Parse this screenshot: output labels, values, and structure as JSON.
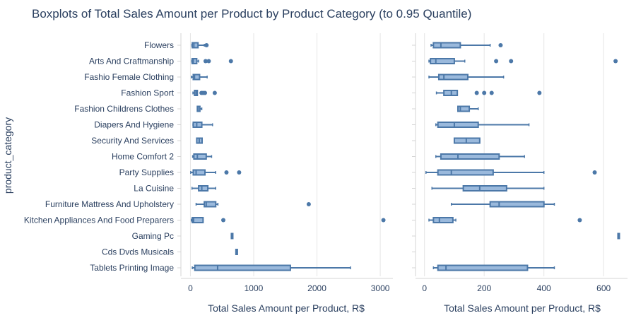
{
  "chart_data": {
    "type": "boxplot",
    "title": "Boxplots of Total Sales Amount per Product by Product Category (to 0.95 Quantile)",
    "ylabel": "product_category",
    "colors": {
      "box_fill": "#9ab9dc",
      "box_stroke": "#4c78a8",
      "text": "#2a3f5f",
      "grid": "#e5e5e5"
    },
    "categories": [
      "Flowers",
      "Arts And Craftmanship",
      "Fashio Female Clothing",
      "Fashion Sport",
      "Fashion Childrens Clothes",
      "Diapers And Hygiene",
      "Security And Services",
      "Home Comfort 2",
      "Party Supplies",
      "La Cuisine",
      "Furniture Mattress And Upholstery",
      "Kitchen Appliances And Food Preparers",
      "Gaming Pc",
      "Cds Dvds Musicals",
      "Tablets Printing Image"
    ],
    "panels": [
      {
        "xlabel": "Total Sales Amount per Product, R$",
        "xlim": [
          -150,
          3200
        ],
        "xticks": [
          0,
          1000,
          2000,
          3000
        ],
        "xtick_labels": [
          "0",
          "1000",
          "2000",
          "3000"
        ],
        "boxes": [
          {
            "wl": 22,
            "q1": 30,
            "median": 55,
            "q3": 120,
            "wh": 220,
            "outliers": [
              255
            ]
          },
          {
            "wl": 20,
            "q1": 28,
            "median": 45,
            "q3": 100,
            "wh": 130,
            "outliers": [
              240,
              290,
              640
            ]
          },
          {
            "wl": 15,
            "q1": 45,
            "median": 65,
            "q3": 145,
            "wh": 265,
            "outliers": []
          },
          {
            "wl": 40,
            "q1": 65,
            "median": 90,
            "q3": 110,
            "wh": 110,
            "outliers": [
              175,
              200,
              230,
              385
            ]
          },
          {
            "wl": 110,
            "q1": 110,
            "median": 120,
            "q3": 150,
            "wh": 180,
            "outliers": []
          },
          {
            "wl": 40,
            "q1": 45,
            "median": 100,
            "q3": 180,
            "wh": 350,
            "outliers": []
          },
          {
            "wl": 100,
            "q1": 100,
            "median": 140,
            "q3": 185,
            "wh": 185,
            "outliers": []
          },
          {
            "wl": 35,
            "q1": 55,
            "median": 110,
            "q3": 250,
            "wh": 335,
            "outliers": []
          },
          {
            "wl": 5,
            "q1": 45,
            "median": 90,
            "q3": 230,
            "wh": 400,
            "outliers": [
              570,
              770
            ]
          },
          {
            "wl": 25,
            "q1": 130,
            "median": 180,
            "q3": 275,
            "wh": 400,
            "outliers": []
          },
          {
            "wl": 90,
            "q1": 220,
            "median": 250,
            "q3": 400,
            "wh": 435,
            "outliers": [
              1870
            ]
          },
          {
            "wl": 15,
            "q1": 30,
            "median": 50,
            "q3": 200,
            "wh": 200,
            "outliers": [
              520,
              3050
            ]
          },
          {
            "wl": 648,
            "q1": 648,
            "median": 648,
            "q3": 648,
            "wh": 648,
            "outliers": []
          },
          {
            "wl": 720,
            "q1": 720,
            "median": 720,
            "q3": 720,
            "wh": 720,
            "outliers": []
          },
          {
            "wl": 30,
            "q1": 70,
            "median": 430,
            "q3": 1580,
            "wh": 2530,
            "outliers": []
          }
        ]
      },
      {
        "xlabel": "Total Sales Amount per Product, R$",
        "xlim": [
          -30,
          680
        ],
        "xticks": [
          0,
          200,
          400,
          600
        ],
        "xtick_labels": [
          "0",
          "200",
          "400",
          "600"
        ],
        "boxes": [
          {
            "wl": 22,
            "q1": 30,
            "median": 55,
            "q3": 120,
            "wh": 220,
            "outliers": [
              255
            ]
          },
          {
            "wl": 15,
            "q1": 20,
            "median": 38,
            "q3": 100,
            "wh": 135,
            "outliers": [
              240,
              290,
              640
            ]
          },
          {
            "wl": 15,
            "q1": 48,
            "median": 65,
            "q3": 145,
            "wh": 265,
            "outliers": []
          },
          {
            "wl": 40,
            "q1": 65,
            "median": 90,
            "q3": 110,
            "wh": 110,
            "outliers": [
              175,
              200,
              225,
              385
            ]
          },
          {
            "wl": 112,
            "q1": 112,
            "median": 120,
            "q3": 150,
            "wh": 180,
            "outliers": []
          },
          {
            "wl": 38,
            "q1": 45,
            "median": 100,
            "q3": 180,
            "wh": 350,
            "outliers": []
          },
          {
            "wl": 100,
            "q1": 100,
            "median": 140,
            "q3": 185,
            "wh": 185,
            "outliers": []
          },
          {
            "wl": 38,
            "q1": 55,
            "median": 112,
            "q3": 250,
            "wh": 335,
            "outliers": []
          },
          {
            "wl": 5,
            "q1": 45,
            "median": 90,
            "q3": 230,
            "wh": 400,
            "outliers": [
              570
            ]
          },
          {
            "wl": 25,
            "q1": 130,
            "median": 185,
            "q3": 275,
            "wh": 400,
            "outliers": []
          },
          {
            "wl": 90,
            "q1": 220,
            "median": 250,
            "q3": 400,
            "wh": 435,
            "outliers": []
          },
          {
            "wl": 15,
            "q1": 30,
            "median": 50,
            "q3": 95,
            "wh": 105,
            "outliers": [
              520
            ]
          },
          {
            "wl": 648,
            "q1": 648,
            "median": 648,
            "q3": 648,
            "wh": 648,
            "outliers": []
          },
          {
            "wl": null,
            "q1": null,
            "median": null,
            "q3": null,
            "wh": null,
            "outliers": []
          },
          {
            "wl": 30,
            "q1": 45,
            "median": 72,
            "q3": 345,
            "wh": 435,
            "outliers": []
          }
        ]
      }
    ]
  }
}
